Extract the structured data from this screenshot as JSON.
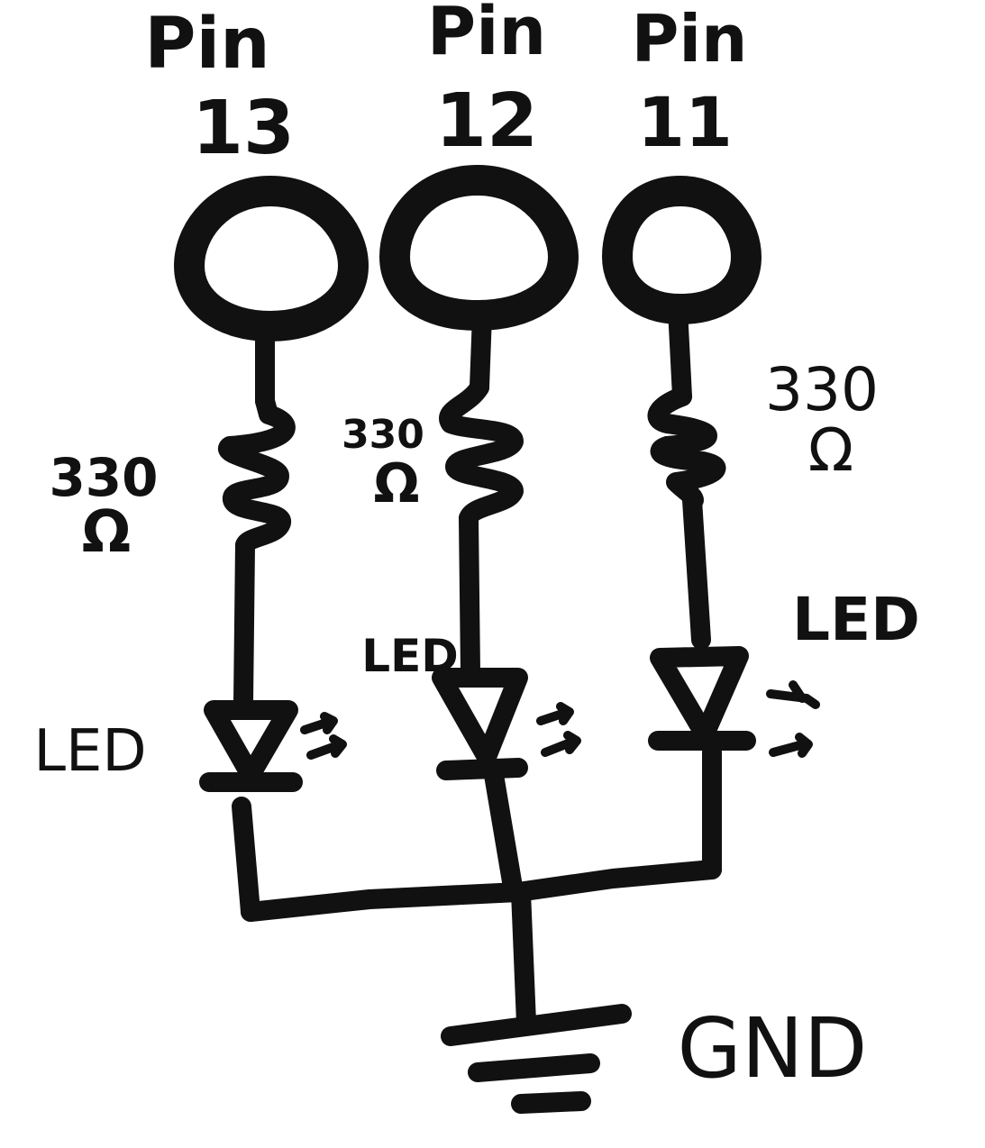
{
  "pins": [
    {
      "word": "Pin",
      "number": "13"
    },
    {
      "word": "Pin",
      "number": "12"
    },
    {
      "word": "Pin",
      "number": "11"
    }
  ],
  "resistors": [
    {
      "value": "330",
      "unit": "Ω"
    },
    {
      "value": "330",
      "unit": "Ω"
    },
    {
      "value": "330",
      "unit": "Ω"
    }
  ],
  "leds": [
    {
      "label": "LED"
    },
    {
      "label": "LED"
    },
    {
      "label": "LED"
    }
  ],
  "ground": {
    "label": "GND"
  }
}
